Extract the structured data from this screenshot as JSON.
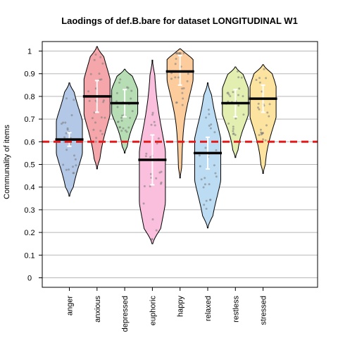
{
  "chart_data": {
    "type": "violin",
    "title": "Laodings of def.B.bare for dataset LONGITUDINAL W1",
    "ylabel": "Communality of items",
    "xlabel": "",
    "ylim": [
      0,
      1
    ],
    "yticks": [
      "0",
      "0.1",
      "0.2",
      "0.3",
      "0.4",
      "0.5",
      "0.6",
      "0.7",
      "0.8",
      "0.9",
      "1"
    ],
    "grid": "horizontal",
    "threshold": 0.6,
    "threshold_color": "#e41a1c",
    "categories": [
      "anger",
      "anxious",
      "depressed",
      "euphoric",
      "happy",
      "relaxed",
      "restless",
      "stressed"
    ],
    "colors": [
      "#b3c7e6",
      "#f4a6ab",
      "#b6ddb4",
      "#f9bfdc",
      "#fccc9c",
      "#bcdcf3",
      "#e2efb1",
      "#fce3a0"
    ],
    "means": [
      0.61,
      0.8,
      0.77,
      0.52,
      0.91,
      0.55,
      0.77,
      0.79
    ],
    "ci": [
      [
        0.58,
        0.64
      ],
      [
        0.73,
        0.87
      ],
      [
        0.71,
        0.83
      ],
      [
        0.41,
        0.63
      ],
      [
        0.85,
        0.98
      ],
      [
        0.48,
        0.62
      ],
      [
        0.71,
        0.83
      ],
      [
        0.73,
        0.85
      ]
    ],
    "range": [
      [
        0.36,
        0.86
      ],
      [
        0.48,
        1.02
      ],
      [
        0.55,
        0.92
      ],
      [
        0.15,
        0.96
      ],
      [
        0.44,
        1.01
      ],
      [
        0.22,
        0.86
      ],
      [
        0.53,
        0.93
      ],
      [
        0.46,
        0.94
      ]
    ],
    "widest_at": [
      0.62,
      0.8,
      0.78,
      0.44,
      0.95,
      0.52,
      0.78,
      0.78
    ]
  }
}
